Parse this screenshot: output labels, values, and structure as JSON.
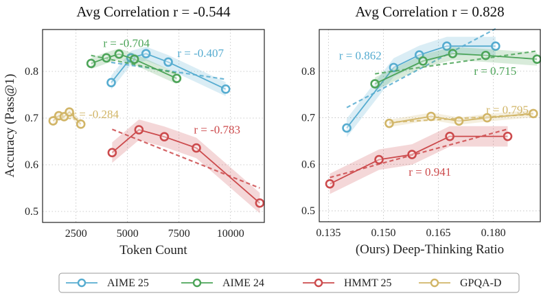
{
  "chart_data": [
    {
      "type": "line",
      "title": "Avg Correlation r = -0.544",
      "xlabel": "Token Count",
      "ylabel": "Accuracy (Pass@1)",
      "xlim": [
        877,
        11643
      ],
      "ylim": [
        0.4765,
        0.8897
      ],
      "xticks": [
        2500,
        5000,
        7500,
        10000
      ],
      "xtick_labels": [
        "2500",
        "5000",
        "7500",
        "10000"
      ],
      "yticks": [
        0.5,
        0.6,
        0.7,
        0.8
      ],
      "ytick_labels": [
        "0.5",
        "0.6",
        "0.7",
        "0.8"
      ],
      "grid": true,
      "series": [
        {
          "name": "AIME 25",
          "color": "#56acd0",
          "x": [
            4211,
            5167,
            5900,
            6978,
            9767
          ],
          "y": [
            0.776,
            0.829,
            0.838,
            0.82,
            0.762
          ],
          "band": 0.015,
          "annotation": {
            "text": "r = -0.407",
            "x": 8550,
            "y": 0.84
          }
        },
        {
          "name": "AIME 24",
          "color": "#4ca458",
          "x": [
            3233,
            3978,
            4589,
            5333,
            7389
          ],
          "y": [
            0.817,
            0.829,
            0.837,
            0.826,
            0.785
          ],
          "band": 0.012,
          "annotation": {
            "text": "r = -0.704",
            "x": 4950,
            "y": 0.861
          }
        },
        {
          "name": "HMMT 25",
          "color": "#cc4a4c",
          "x": [
            4256,
            5556,
            6789,
            8344,
            11422
          ],
          "y": [
            0.626,
            0.675,
            0.66,
            0.636,
            0.518
          ],
          "band": 0.022,
          "annotation": {
            "text": "r = -0.783",
            "x": 9350,
            "y": 0.676
          }
        },
        {
          "name": "GPQA-D",
          "color": "#d1b567",
          "x": [
            1389,
            1667,
            1922,
            2178,
            2733
          ],
          "y": [
            0.694,
            0.705,
            0.703,
            0.713,
            0.687
          ],
          "band": 0.008,
          "annotation": {
            "text": "r = -0.284",
            "x": 3450,
            "y": 0.709
          }
        }
      ]
    },
    {
      "type": "line",
      "title": "Avg Correlation r = 0.828",
      "xlabel": "(Ours) Deep-Thinking Ratio",
      "ylabel": "",
      "xlim": [
        0.1325,
        0.1928
      ],
      "ylim": [
        0.4765,
        0.8897
      ],
      "xticks": [
        0.135,
        0.15,
        0.165,
        0.18
      ],
      "xtick_labels": [
        "0.135",
        "0.150",
        "0.165",
        "0.180"
      ],
      "yticks": [
        0.5,
        0.6,
        0.7,
        0.8
      ],
      "ytick_labels": [
        "0.5",
        "0.6",
        "0.7",
        "0.8"
      ],
      "grid": true,
      "series": [
        {
          "name": "AIME 25",
          "color": "#56acd0",
          "x": [
            0.14,
            0.1528,
            0.1598,
            0.1673,
            0.1806
          ],
          "y": [
            0.678,
            0.808,
            0.835,
            0.854,
            0.854
          ],
          "band": 0.02,
          "annotation": {
            "text": "r = 0.862",
            "x": 0.1437,
            "y": 0.834
          }
        },
        {
          "name": "AIME 24",
          "color": "#4ca458",
          "x": [
            0.1477,
            0.1608,
            0.1689,
            0.1779,
            0.1919
          ],
          "y": [
            0.773,
            0.822,
            0.838,
            0.834,
            0.826
          ],
          "band": 0.014,
          "annotation": {
            "text": "r = 0.715",
            "x": 0.1805,
            "y": 0.801
          }
        },
        {
          "name": "HMMT 25",
          "color": "#cc4a4c",
          "x": [
            0.1354,
            0.1488,
            0.1578,
            0.1681,
            0.1839
          ],
          "y": [
            0.558,
            0.61,
            0.621,
            0.66,
            0.66
          ],
          "band": 0.022,
          "annotation": {
            "text": "r = 0.941",
            "x": 0.1627,
            "y": 0.584
          }
        },
        {
          "name": "GPQA-D",
          "color": "#d1b567",
          "x": [
            0.1516,
            0.163,
            0.1706,
            0.1783,
            0.1909
          ],
          "y": [
            0.688,
            0.703,
            0.693,
            0.7,
            0.709
          ],
          "band": 0.008,
          "annotation": {
            "text": "r = 0.795",
            "x": 0.1838,
            "y": 0.718
          }
        }
      ]
    }
  ],
  "legend": {
    "placement": "bottom-center",
    "items": [
      {
        "label": "AIME 25",
        "color": "#56acd0"
      },
      {
        "label": "AIME 24",
        "color": "#4ca458"
      },
      {
        "label": "HMMT 25",
        "color": "#cc4a4c"
      },
      {
        "label": "GPQA-D",
        "color": "#d1b567"
      }
    ]
  }
}
